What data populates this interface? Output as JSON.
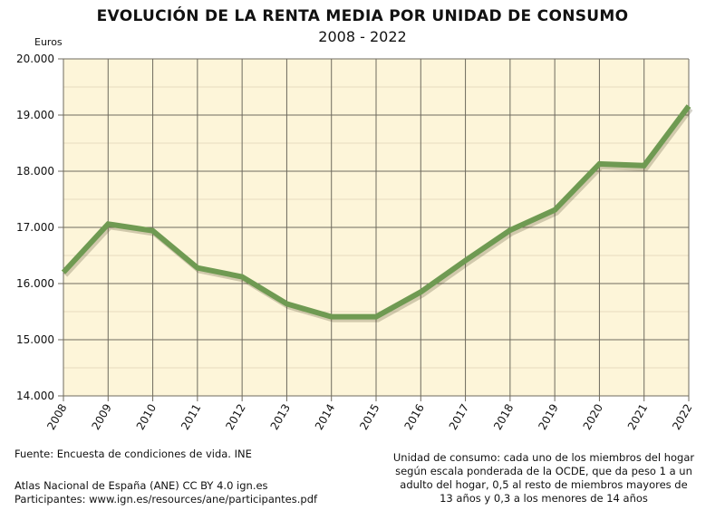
{
  "chart_data": {
    "type": "line",
    "title": "EVOLUCIÓN DE LA RENTA MEDIA POR UNIDAD DE CONSUMO",
    "subtitle": "2008 - 2022",
    "ylabel": "Euros",
    "xlabel": "",
    "ylim": [
      14000,
      20000
    ],
    "yticks": [
      14000,
      15000,
      16000,
      17000,
      18000,
      19000,
      20000
    ],
    "ytick_labels": [
      "14.000",
      "15.000",
      "16.000",
      "17.000",
      "18.000",
      "19.000",
      "20.000"
    ],
    "x": [
      "2008",
      "2009",
      "2010",
      "2011",
      "2012",
      "2013",
      "2014",
      "2015",
      "2016",
      "2017",
      "2018",
      "2019",
      "2020",
      "2021",
      "2022"
    ],
    "values": [
      16200,
      17060,
      16940,
      16280,
      16120,
      15640,
      15410,
      15410,
      15850,
      16410,
      16950,
      17310,
      18130,
      18100,
      19160
    ],
    "grid": true,
    "colors": {
      "line": "#6f9a52",
      "plot_bg": "#fdf5d9",
      "grid": "#6e6a5e",
      "minor_grid": "#e6dcc0"
    }
  },
  "footer": {
    "source": "Fuente: Encuesta de condiciones de vida. INE",
    "atlas": "Atlas Nacional de España (ANE) CC BY 4.0 ign.es",
    "participants": "Participantes: www.ign.es/resources/ane/participantes.pdf",
    "note_lines": [
      "Unidad de consumo: cada uno de los miembros del hogar",
      "según escala ponderada de la OCDE, que da peso 1 a un",
      "adulto del hogar, 0,5 al resto de miembros mayores de",
      "13 años y 0,3 a los menores de 14 años"
    ]
  }
}
